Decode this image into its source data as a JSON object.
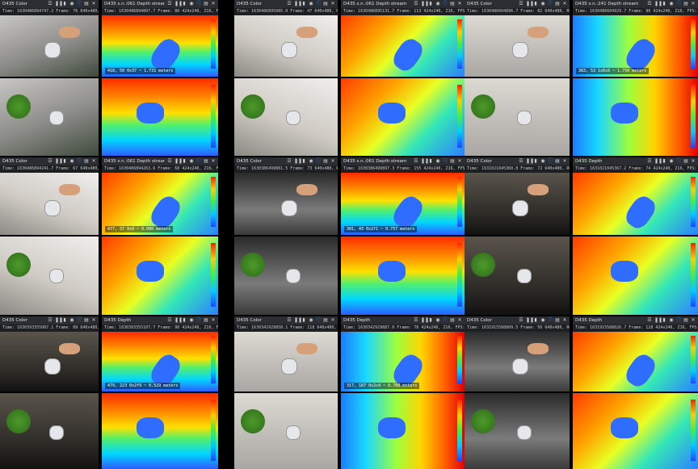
{
  "panes": {
    "r0c0a": {
      "title": "D435 Color",
      "meta": "Time: 1630486894747.2   Frame: 76  640x480, RGB8,  FPS: 30",
      "foot": ""
    },
    "r0c0b": {
      "title": "D435 s.n.:061 Depth stream",
      "meta": "Time: 1630486894807.7  Frame: 80  424x240, Z16,  FPS: 30",
      "foot": "418, 50 0x37 ~ 1.731 meters"
    },
    "r0c1a": {
      "title": "D435 Color",
      "meta": "Time: 1630486895085.0   Frame: 47  640x480, RGB8,  FPS: 30",
      "foot": ""
    },
    "r0c1b": {
      "title": "D435 s.n.:061 Depth stream",
      "meta": "Time: 1630486895131.7  Frame: 113  424x240, Z16,  FPS: 30",
      "foot": ""
    },
    "r0c2a": {
      "title": "D435 Color",
      "meta": "Time: 1630486604896.7   Frame: 82  640x480, RGB8,  FPS: 30",
      "foot": ""
    },
    "r0c2b": {
      "title": "D435 s.n.:241 Depth stream",
      "meta": "Time: 1630486604929.7  Frame: 90  424x240, Z16,  FPS: 30",
      "foot": "383, 53 1x6c6 ~ 1.750 meters"
    },
    "r1c0a": {
      "title": "D435 Color",
      "meta": "Time: 1630486894241.7   Frame: 67  640x480, RGB8,  FPS: 30",
      "foot": ""
    },
    "r1c0b": {
      "title": "D435 s.n.:061 Depth stream",
      "meta": "Time: 1630486894263.6  Frame: 68  424x240, Z16,  FPS: 30",
      "foot": "477, 37 0x0 ~ 0.000 meters"
    },
    "r1c1a": {
      "title": "D435 Color",
      "meta": "Time: 1630386499881.5   Frame: 73  640x480, RGB8,  FPS: 30",
      "foot": ""
    },
    "r1c1b": {
      "title": "D435 s.n.:061 Depth stream",
      "meta": "Time: 1630386499897.3  Frame: 155  424x240, Z16,  FPS: 30",
      "foot": "301, 43 0x2f1 ~ 0.757 meters"
    },
    "r1c2a": {
      "title": "D435 Color",
      "meta": "Time: 1631021045360.8   Frame: 72  640x480, RGB8,  FPS: 30",
      "foot": ""
    },
    "r1c2b": {
      "title": "D435 Depth",
      "meta": "Time: 1631021045367.2  Frame: 74  424x240, Z16,  FPS: 30",
      "foot": ""
    },
    "r2c0a": {
      "title": "D435 Color",
      "meta": "Time: 1630393355087.1   Frame: 89  640x480, RGB8,  FPS: 30",
      "foot": ""
    },
    "r2c0b": {
      "title": "D435 Depth",
      "meta": "Time: 1630393355107.7  Frame: 90  424x240, Z16,  FPS: 30",
      "foot": "479, 223 0x2f9 ~ 0.529 meters"
    },
    "r2c1a": {
      "title": "D435 Color",
      "meta": "Time: 1630342929858.1   Frame: 118  640x480, RGB8,  FPS: 30",
      "foot": ""
    },
    "r2c1b": {
      "title": "D435 Depth",
      "meta": "Time: 1630342929887.0  Frame: 78  424x240, Z16,  FPS: 30",
      "foot": "317, 187 0x2c4 ~ 0.708 meters"
    },
    "r2c2a": {
      "title": "D435 Color",
      "meta": "Time: 1631915588809.5   Frame: 56  640x480, RGB8,  FPS: 30",
      "foot": ""
    },
    "r2c2b": {
      "title": "D435 Depth",
      "meta": "Time: 1631915588826.7  Frame: 128  424x240, Z16,  FPS: 30",
      "foot": ""
    }
  },
  "colorbar_ticks": [
    "4",
    "3",
    "2",
    "1",
    "0"
  ],
  "colors": {
    "toolbar": "#2a2d31",
    "meta": "#1d1f22",
    "accent": "#2d8cff"
  }
}
